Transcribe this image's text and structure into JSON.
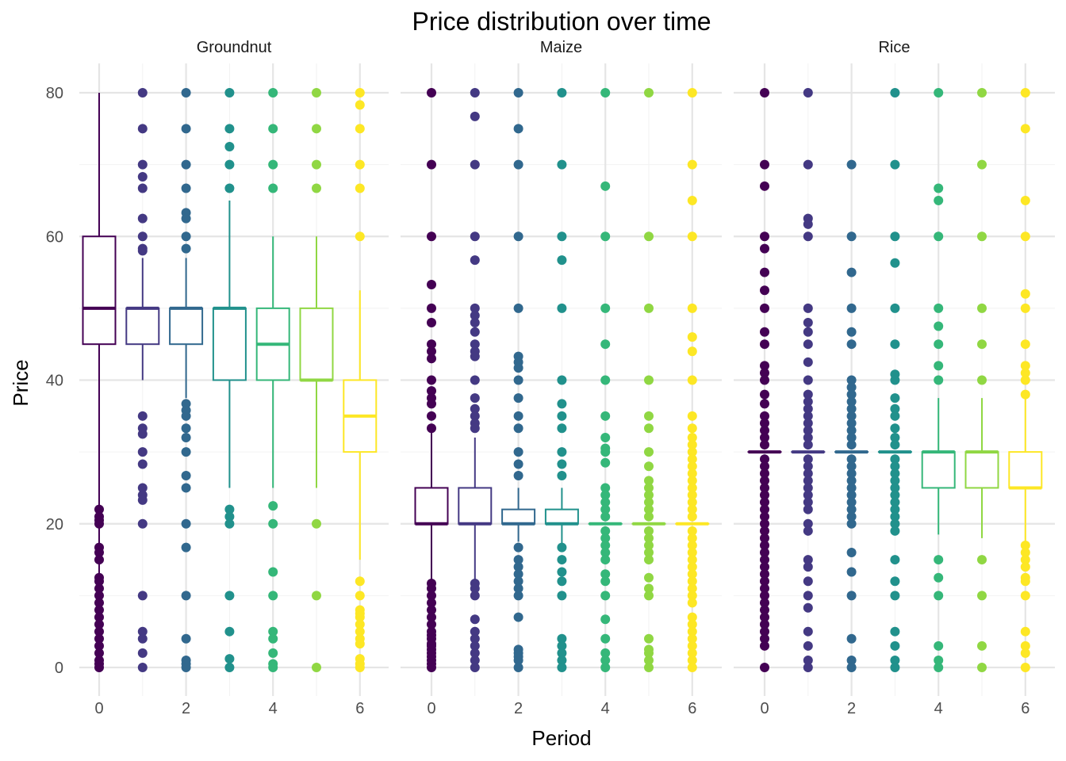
{
  "chart_data": {
    "type": "boxplot",
    "title": "Price distribution over time",
    "xlabel": "Period",
    "ylabel": "Price",
    "ylim": [
      -6,
      84
    ],
    "xlim": [
      -0.45,
      6.45
    ],
    "y_ticks": [
      0,
      20,
      40,
      60,
      80
    ],
    "x_ticks": [
      0,
      2,
      4,
      6
    ],
    "grid": true,
    "legend": "none",
    "palette": [
      "#440154",
      "#443983",
      "#31688e",
      "#21918c",
      "#35b779",
      "#90d743",
      "#fde725"
    ],
    "facets": [
      {
        "name": "Groundnut",
        "boxes": [
          {
            "period": 0,
            "lower_whisker": 0,
            "q1": 45,
            "median": 50,
            "q3": 60,
            "upper_whisker": 80,
            "outliers": [
              22,
              21,
              20.5,
              20,
              16.7,
              16,
              15,
              12.5,
              12,
              11,
              10,
              9,
              8,
              7,
              6,
              5,
              4,
              3,
              2,
              1,
              0.5,
              0
            ]
          },
          {
            "period": 1,
            "lower_whisker": 40,
            "q1": 45,
            "median": 50,
            "q3": 50,
            "upper_whisker": 57,
            "outliers": [
              80,
              75,
              70,
              68.3,
              66.7,
              62.5,
              60,
              58.3,
              58,
              35,
              33.3,
              32.5,
              30,
              28.3,
              25,
              24,
              23.3,
              20,
              10,
              5,
              4,
              2,
              0
            ]
          },
          {
            "period": 2,
            "lower_whisker": 37.5,
            "q1": 45,
            "median": 50,
            "q3": 50,
            "upper_whisker": 57,
            "outliers": [
              80,
              75,
              70,
              66.7,
              63.3,
              62.5,
              60,
              58.3,
              36.7,
              35.8,
              35,
              33.3,
              32,
              30,
              26.7,
              25,
              20,
              16.7,
              10,
              4,
              1,
              0.5,
              0
            ]
          },
          {
            "period": 3,
            "lower_whisker": 25,
            "q1": 40,
            "median": 50,
            "q3": 50,
            "upper_whisker": 65,
            "outliers": [
              80,
              75,
              72.5,
              70,
              66.7,
              22,
              21,
              20,
              10,
              5,
              1.2,
              0
            ]
          },
          {
            "period": 4,
            "lower_whisker": 25,
            "q1": 40,
            "median": 45,
            "q3": 50,
            "upper_whisker": 60,
            "outliers": [
              80,
              75,
              70,
              66.7,
              22.5,
              20,
              13.3,
              10,
              5,
              4,
              2,
              0.5,
              0
            ]
          },
          {
            "period": 5,
            "lower_whisker": 25,
            "q1": 40,
            "median": 40,
            "q3": 50,
            "upper_whisker": 60,
            "outliers": [
              80,
              75,
              70,
              66.7,
              20,
              10,
              0
            ]
          },
          {
            "period": 6,
            "lower_whisker": 15,
            "q1": 30,
            "median": 35,
            "q3": 40,
            "upper_whisker": 52.5,
            "outliers": [
              80,
              78.3,
              75,
              70,
              66.7,
              60,
              12,
              10,
              8,
              7.5,
              7,
              6,
              5,
              4,
              3.3,
              1.2,
              0.5,
              0
            ]
          }
        ]
      },
      {
        "name": "Maize",
        "boxes": [
          {
            "period": 0,
            "lower_whisker": 12,
            "q1": 20,
            "median": 20,
            "q3": 25,
            "upper_whisker": 33,
            "outliers": [
              80,
              70,
              60,
              53.3,
              50,
              48,
              45,
              44,
              43,
              40,
              38.5,
              37.5,
              36.7,
              35,
              33.3,
              11.7,
              11,
              10,
              9,
              8,
              7,
              6,
              5,
              4.5,
              4,
              3.3,
              3,
              2.5,
              2,
              1.5,
              1,
              0.5,
              0
            ]
          },
          {
            "period": 1,
            "lower_whisker": 12,
            "q1": 20,
            "median": 20,
            "q3": 25,
            "upper_whisker": 32,
            "outliers": [
              80,
              76.7,
              70,
              60,
              56.7,
              50,
              49,
              48,
              46.7,
              45,
              44,
              43.3,
              40,
              37.5,
              36,
              35,
              34,
              33.3,
              11.7,
              11,
              10,
              6.7,
              5,
              4,
              3,
              2,
              1,
              0
            ]
          },
          {
            "period": 2,
            "lower_whisker": 17.5,
            "q1": 20,
            "median": 20,
            "q3": 22,
            "upper_whisker": 25,
            "outliers": [
              80,
              75,
              70,
              60,
              50,
              43.3,
              42.5,
              41.7,
              40,
              37.5,
              35,
              33.3,
              30,
              28.3,
              26.7,
              16.7,
              15,
              14,
              13,
              12,
              11,
              10,
              7,
              2.5,
              2,
              1.5,
              1,
              0
            ]
          },
          {
            "period": 3,
            "lower_whisker": 17,
            "q1": 20,
            "median": 20,
            "q3": 22,
            "upper_whisker": 25,
            "outliers": [
              80,
              70,
              60,
              56.7,
              50,
              40,
              36.7,
              35,
              33.3,
              30,
              28.3,
              26.7,
              16.7,
              15,
              13.3,
              12,
              10,
              4,
              3,
              2,
              1,
              0
            ]
          },
          {
            "period": 4,
            "lower_whisker": 20,
            "q1": 20,
            "median": 20,
            "q3": 20,
            "upper_whisker": 20,
            "outliers": [
              80,
              67,
              60,
              50,
              45,
              40,
              35,
              32,
              30.5,
              30,
              28.5,
              25,
              24,
              23,
              22,
              21,
              19,
              18,
              17,
              16,
              15,
              13,
              12,
              10,
              6.7,
              4,
              2,
              1,
              0
            ]
          },
          {
            "period": 5,
            "lower_whisker": 20,
            "q1": 20,
            "median": 20,
            "q3": 20,
            "upper_whisker": 20,
            "outliers": [
              80,
              60,
              50,
              40,
              35,
              33.3,
              30,
              28,
              26,
              25,
              24,
              23,
              22,
              21,
              19,
              18,
              17,
              16,
              15,
              12.5,
              11,
              10,
              4,
              2.5,
              2,
              1,
              0
            ]
          },
          {
            "period": 6,
            "lower_whisker": 20,
            "q1": 20,
            "median": 20,
            "q3": 20,
            "upper_whisker": 20,
            "outliers": [
              80,
              70,
              65,
              60,
              50,
              46,
              44,
              40,
              35,
              33.3,
              32,
              31,
              30,
              29,
              28,
              27,
              26,
              25,
              24,
              23,
              22,
              21,
              19,
              18,
              17,
              16,
              15,
              14,
              13,
              12,
              11,
              10,
              9,
              7,
              6,
              5,
              4,
              3,
              2,
              1,
              0
            ]
          }
        ]
      },
      {
        "name": "Rice",
        "boxes": [
          {
            "period": 0,
            "lower_whisker": 30,
            "q1": 30,
            "median": 30,
            "q3": 30,
            "upper_whisker": 30,
            "outliers": [
              80,
              70,
              67,
              60,
              58.3,
              55,
              52.5,
              50,
              46.7,
              45,
              42,
              41,
              40,
              38,
              36.7,
              35,
              34,
              33,
              32,
              31,
              29,
              28,
              27,
              26,
              25,
              24,
              23,
              22,
              21,
              20,
              19,
              18,
              17,
              16,
              15,
              14,
              13,
              12,
              11,
              10,
              9,
              8,
              7,
              6,
              5,
              4,
              3,
              0
            ]
          },
          {
            "period": 1,
            "lower_whisker": 30,
            "q1": 30,
            "median": 30,
            "q3": 30,
            "upper_whisker": 30,
            "outliers": [
              80,
              70,
              62.5,
              61.7,
              60,
              50,
              48,
              46.7,
              45,
              42.5,
              40,
              38,
              37,
              36,
              35,
              34,
              33,
              32,
              31,
              29,
              28,
              27,
              26,
              25,
              24,
              23,
              22,
              20,
              19,
              15,
              14,
              12,
              10,
              8.3,
              5,
              3,
              1,
              0
            ]
          },
          {
            "period": 2,
            "lower_whisker": 30,
            "q1": 30,
            "median": 30,
            "q3": 30,
            "upper_whisker": 30,
            "outliers": [
              70,
              60,
              55,
              50,
              46.7,
              45,
              40,
              39,
              38,
              37,
              36,
              35,
              34,
              33,
              32,
              31,
              29,
              28,
              27,
              26,
              25,
              24,
              23,
              22,
              21,
              20,
              16,
              13.3,
              10,
              4,
              1,
              0
            ]
          },
          {
            "period": 3,
            "lower_whisker": 30,
            "q1": 30,
            "median": 30,
            "q3": 30,
            "upper_whisker": 30,
            "outliers": [
              80,
              70,
              60,
              56.3,
              50,
              45,
              40.8,
              40,
              37.5,
              36,
              35,
              33.3,
              32,
              31,
              29,
              28,
              27,
              26,
              25,
              24,
              23,
              22,
              21,
              20,
              19,
              15,
              12,
              10,
              5,
              3,
              1,
              0
            ]
          },
          {
            "period": 4,
            "lower_whisker": 18.5,
            "q1": 25,
            "median": 30,
            "q3": 30,
            "upper_whisker": 37.5,
            "outliers": [
              80,
              66.7,
              65,
              60,
              50,
              47.5,
              45,
              42,
              40,
              15,
              12.5,
              10,
              3,
              1,
              0
            ]
          },
          {
            "period": 5,
            "lower_whisker": 18,
            "q1": 25,
            "median": 30,
            "q3": 30,
            "upper_whisker": 37.5,
            "outliers": [
              80,
              70,
              60,
              50,
              45,
              40,
              15,
              10,
              3,
              0
            ]
          },
          {
            "period": 6,
            "lower_whisker": 15,
            "q1": 25,
            "median": 25,
            "q3": 30,
            "upper_whisker": 38,
            "outliers": [
              80,
              75,
              65,
              60,
              52,
              50,
              45,
              42,
              41,
              40,
              38,
              17,
              16,
              15,
              14,
              12.5,
              12,
              10,
              5,
              3,
              2,
              0
            ]
          }
        ]
      }
    ]
  }
}
